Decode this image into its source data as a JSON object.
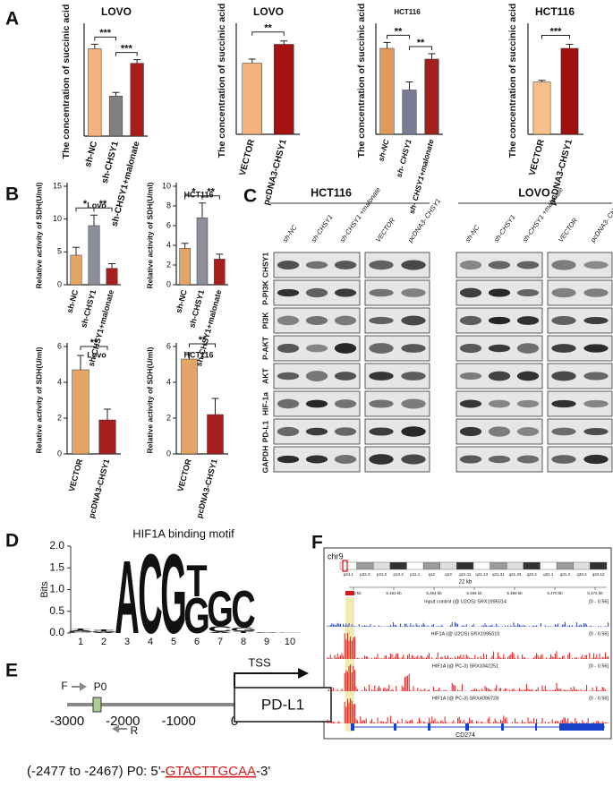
{
  "panel_labels": [
    "A",
    "B",
    "C",
    "D",
    "E",
    "F"
  ],
  "chart_data": [
    {
      "type": "bar",
      "title": "LOVO",
      "y_label": "The concentration of succinic acid",
      "categories": [
        "sh-NC",
        "sh-CHSY1",
        "sh-CHSY1+malonate"
      ],
      "values": [
        0.48,
        0.22,
        0.4
      ],
      "errors": [
        0.025,
        0.02,
        0.02
      ],
      "colors": [
        "#f4b27c",
        "#808080",
        "#a81c1c"
      ],
      "ylim": [
        0,
        0.6
      ],
      "significance": [
        "***",
        "***"
      ]
    },
    {
      "type": "bar",
      "title": "LOVO",
      "y_label": "The concentration of succinic acid",
      "categories": [
        "VECTOR",
        "pcDNA3-CHSY1"
      ],
      "values": [
        0.53,
        0.67
      ],
      "errors": [
        0.03,
        0.025
      ],
      "colors": [
        "#f4b27c",
        "#a51212"
      ],
      "ylim": [
        0,
        0.8
      ],
      "significance": [
        "**"
      ]
    },
    {
      "type": "bar",
      "title": "HCT116",
      "y_label": "The concentration of succinic acid",
      "categories": [
        "sh-NC",
        "sh- CHSY1",
        "sh- CHSY1+malonate"
      ],
      "values": [
        0.32,
        0.165,
        0.28
      ],
      "errors": [
        0.022,
        0.03,
        0.02
      ],
      "colors": [
        "#e09a5a",
        "#7a7c96",
        "#a51e1e"
      ],
      "ylim": [
        0,
        0.4
      ],
      "significance": [
        "**",
        "**"
      ]
    },
    {
      "type": "bar",
      "title": "HCT116",
      "y_label": "The concentration of succinic acid",
      "categories": [
        "VECTOR",
        "pcDNA3-CHSY1"
      ],
      "values": [
        0.39,
        0.64
      ],
      "errors": [
        0.012,
        0.03
      ],
      "colors": [
        "#f5c08a",
        "#a01010"
      ],
      "ylim": [
        0,
        0.8
      ],
      "significance": [
        "***"
      ]
    },
    {
      "type": "bar",
      "title": "Lovo",
      "y_label": "Relative activity of SDH(U/ml)",
      "categories": [
        "sh-NC",
        "sh-CHSY1",
        "sh-CHSY1+malonate"
      ],
      "values": [
        4.5,
        9,
        2.5
      ],
      "errors": [
        1.2,
        1.6,
        0.7
      ],
      "colors": [
        "#e3a565",
        "#8e8f9d",
        "#a81f1f"
      ],
      "ylim": [
        0,
        15
      ],
      "yticks": [
        0,
        5,
        10,
        15
      ],
      "significance": [
        "*",
        "**"
      ]
    },
    {
      "type": "bar",
      "title": "HCT116",
      "y_label": "Relative activity of SDH(U/ml)",
      "categories": [
        "sh-NC",
        "sh-CHSY1",
        "sh-CHSY1+malonate"
      ],
      "values": [
        3.7,
        6.8,
        2.6
      ],
      "errors": [
        0.5,
        1.5,
        0.5
      ],
      "colors": [
        "#e3a565",
        "#8e8f9d",
        "#a81f1f"
      ],
      "ylim": [
        0,
        10
      ],
      "yticks": [
        0,
        2,
        4,
        6,
        8,
        10
      ],
      "significance": [
        "*",
        "**"
      ]
    },
    {
      "type": "bar",
      "title": "Lovo",
      "y_label": "Relative activity of SDH(U/ml)",
      "categories": [
        "VECTOR",
        "pcDNA3-CHSY1"
      ],
      "values": [
        4.7,
        1.9
      ],
      "errors": [
        0.8,
        0.6
      ],
      "colors": [
        "#e3a565",
        "#a81f1f"
      ],
      "ylim": [
        0,
        6
      ],
      "yticks": [
        0,
        2,
        4,
        6
      ],
      "significance": [
        "**"
      ]
    },
    {
      "type": "bar",
      "title": "HCT116",
      "y_label": "Relative activity of SDH(U/ml)",
      "categories": [
        "VECTOR",
        "pcDNA3-CHSY1"
      ],
      "values": [
        5.3,
        2.2
      ],
      "errors": [
        0.35,
        0.9
      ],
      "colors": [
        "#e3a565",
        "#a81f1f"
      ],
      "ylim": [
        0,
        6
      ],
      "yticks": [
        0,
        2,
        4,
        6
      ],
      "significance": [
        "**"
      ]
    },
    {
      "type": "logo",
      "title": "HIF1A binding motif",
      "y_label": "Bits",
      "ylim": [
        0,
        2
      ],
      "yticks": [
        {
          "value": 0,
          "label": "0.0"
        },
        {
          "value": 0.5,
          "label": "0.5"
        },
        {
          "value": 1,
          "label": "1.0"
        },
        {
          "value": 1.5,
          "label": "1.5"
        },
        {
          "value": 2,
          "label": "2.0"
        }
      ],
      "xlim": [
        0.5,
        10.5
      ],
      "x": [
        1,
        2,
        3,
        4,
        5,
        6,
        7,
        8,
        9,
        10
      ],
      "letter_colors": {
        "A": "#2e9a44",
        "C": "#2a64b4",
        "G": "#f0a830",
        "T": "#d83030"
      },
      "positions": [
        [
          {
            "letter": "C",
            "bits": 0.02
          },
          {
            "letter": "G",
            "bits": 0.02
          },
          {
            "letter": "A",
            "bits": 0.03
          },
          {
            "letter": "T",
            "bits": 0.02
          }
        ],
        [
          {
            "letter": "A",
            "bits": 0.02
          },
          {
            "letter": "G",
            "bits": 0.02
          },
          {
            "letter": "T",
            "bits": 0.04
          }
        ],
        [
          {
            "letter": "A",
            "bits": 1.75
          }
        ],
        [
          {
            "letter": "C",
            "bits": 1.9
          }
        ],
        [
          {
            "letter": "G",
            "bits": 1.9
          }
        ],
        [
          {
            "letter": "G",
            "bits": 0.85
          },
          {
            "letter": "T",
            "bits": 0.75
          }
        ],
        [
          {
            "letter": "A",
            "bits": 0.03
          },
          {
            "letter": "C",
            "bits": 0.12
          },
          {
            "letter": "G",
            "bits": 0.85
          }
        ],
        [
          {
            "letter": "T",
            "bits": 0.04
          },
          {
            "letter": "G",
            "bits": 0.08
          },
          {
            "letter": "C",
            "bits": 0.9
          }
        ],
        [
          {
            "letter": "A",
            "bits": 0.01
          },
          {
            "letter": "C",
            "bits": 0.01
          }
        ],
        [
          {
            "letter": "G",
            "bits": 0.01
          }
        ]
      ]
    }
  ],
  "blot": {
    "cell_lines": [
      "HCT116",
      "LOVO"
    ],
    "lanes": [
      "sh-NC",
      "sh-CHSY1",
      "sh-CHSY1 +malonate",
      "VECTOR",
      "pcDNA3- CHSY1"
    ],
    "proteins": [
      "CHSY1",
      "P-PI3K",
      "PI3K",
      "P-AKT",
      "AKT",
      "HIF-1a",
      "PD-L1",
      "GAPDH"
    ]
  },
  "promoter": {
    "tss": "TSS",
    "gene": "PD-L1",
    "forward": "F",
    "reverse": "R",
    "primer": "P0",
    "xlim": [
      -3000,
      0
    ],
    "xticks": [
      -3000,
      -2000,
      -1000,
      0
    ],
    "caption": {
      "prefix": "(-2477 to -2467) P0: 5'-",
      "sequence": "GTACTTGCAA",
      "suffix": "-3'"
    }
  },
  "tracks": {
    "chromosome": "chr9",
    "scale": "22 kb",
    "bands": [
      "p24.1",
      "p22.3",
      "p21.2",
      "p13.3",
      "p11.1",
      "q12",
      "q13",
      "q21.11",
      "q21.13",
      "q21.31",
      "q21.33",
      "q22.2",
      "q31.1",
      "q31.3",
      "q33.2",
      "q34.12"
    ],
    "coords": [
      "5,460 kb",
      "5,462 kb",
      "5,464 kb",
      "5,466 kb",
      "5,468 kb",
      "5,470 kb",
      "5,472 kb"
    ],
    "tracks": [
      {
        "name": "Input control (@ U2OS) SRX1995014",
        "range": "[0 - 0.56]"
      },
      {
        "name": "HIF1A (@ U2OS) SRX1995010",
        "range": "[0 - 0.56]"
      },
      {
        "name": "HIF1A (@ PC-3) SRX3342251",
        "range": "[0 - 0.56]"
      },
      {
        "name": "HIF1A (@ PC-3) SRX4096728",
        "range": "[0 - 0.56]"
      }
    ],
    "gene": "CD274"
  }
}
